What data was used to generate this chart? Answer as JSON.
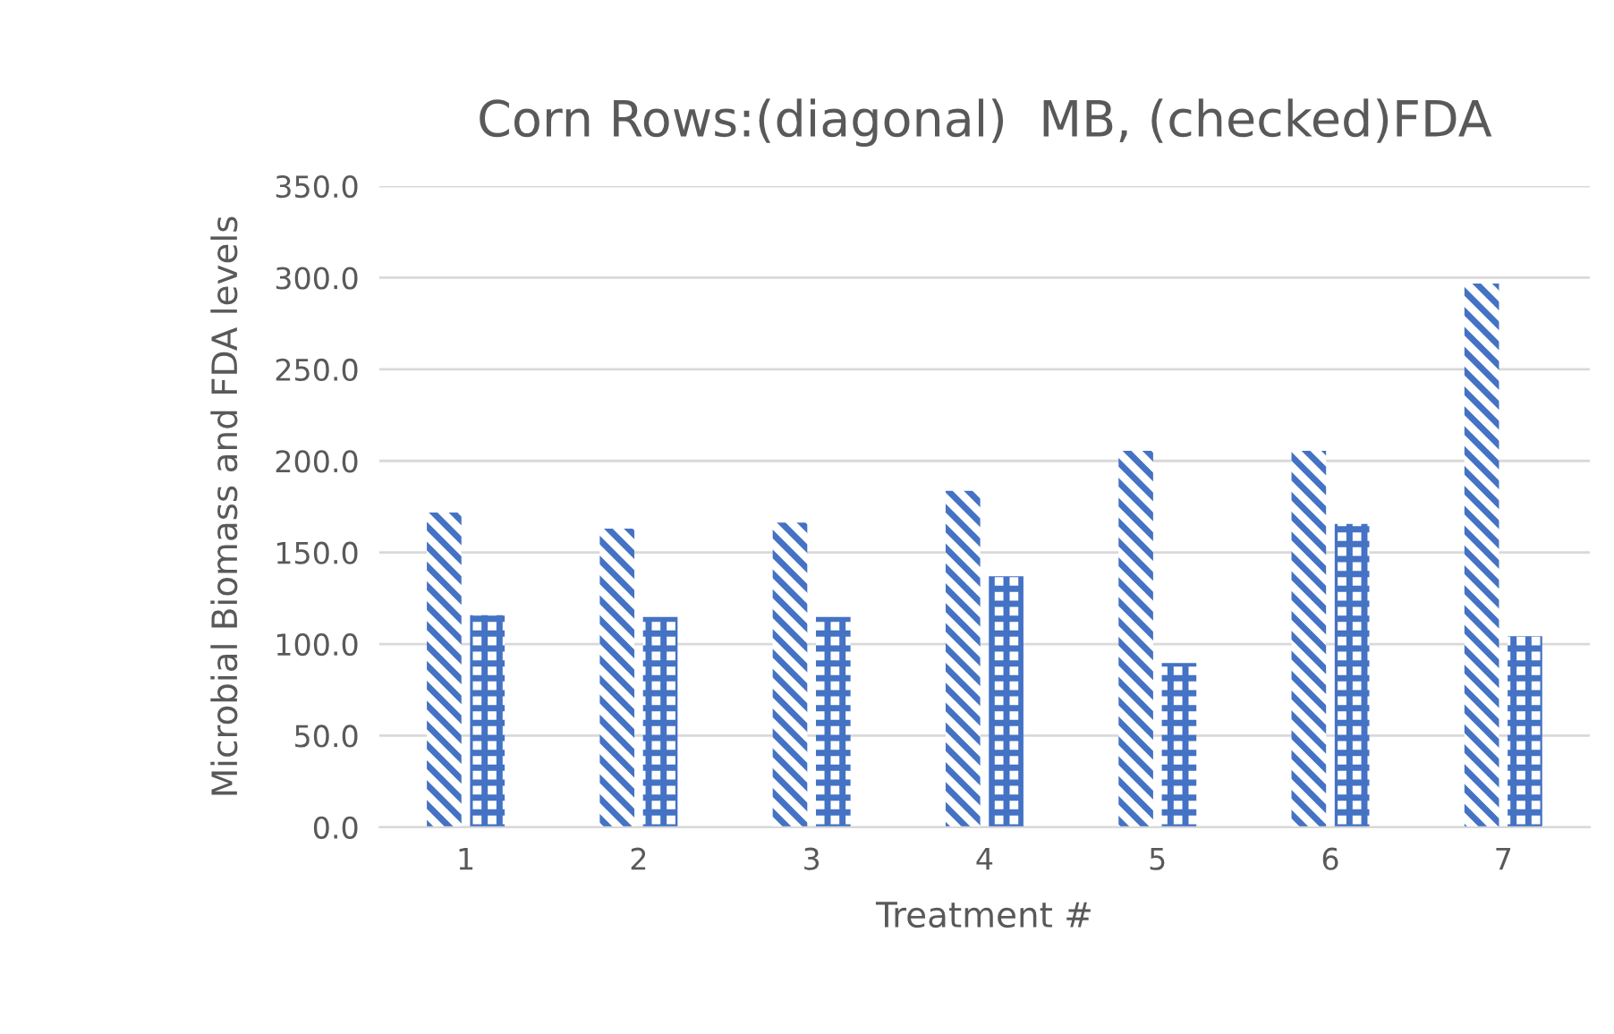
{
  "chart_data": {
    "type": "bar",
    "title": "Corn Rows:(diagonal)  MB, (checked)FDA",
    "xlabel": "Treatment #",
    "ylabel": "Microbial Biomass and FDA levels",
    "categories": [
      "1",
      "2",
      "3",
      "4",
      "5",
      "6",
      "7"
    ],
    "series": [
      {
        "color": "#4472c4",
        "values": [
          171.8,
          163.0,
          166.3,
          183.6,
          205.5,
          205.5,
          296.8
        ]
      },
      {
        "color": "#4472c4",
        "values": [
          115.7,
          114.8,
          114.8,
          137.0,
          89.6,
          165.6,
          104.3
        ]
      }
    ],
    "ylim": [
      0,
      350
    ],
    "yticks": [
      {
        "value": 0,
        "label": "0.0"
      },
      {
        "value": 50,
        "label": "50.0"
      },
      {
        "value": 100,
        "label": "100.0"
      },
      {
        "value": 150,
        "label": "150.0"
      },
      {
        "value": 200,
        "label": "200.0"
      },
      {
        "value": 250,
        "label": "250.0"
      },
      {
        "value": 300,
        "label": "300.0"
      },
      {
        "value": 350,
        "label": "350.0"
      }
    ],
    "grid": "y",
    "legend": false
  }
}
